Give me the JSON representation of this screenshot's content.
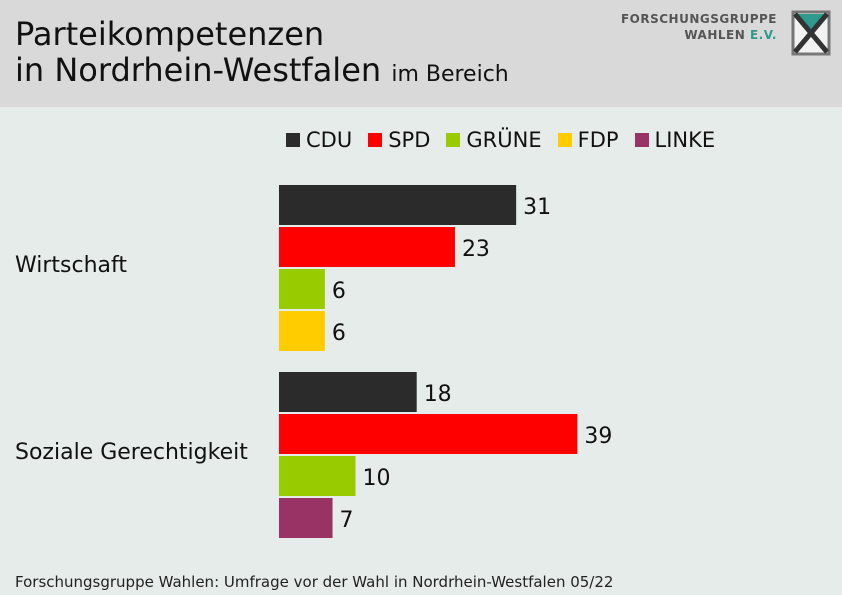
{
  "header": {
    "title_line1": "Parteikompetenzen",
    "title_line2": "in Nordrhein-Westfalen",
    "title_suffix": "im Bereich"
  },
  "logo": {
    "line1": "FORSCHUNGSGRUPPE",
    "line2": "WAHLEN",
    "line2_suffix": "E.V."
  },
  "footer": {
    "source": "Forschungsgruppe Wahlen: Umfrage vor der Wahl in Nordrhein-Westfalen 05/22"
  },
  "chart_data": {
    "type": "bar",
    "orientation": "horizontal",
    "grid": false,
    "legend_position": "top",
    "parties": [
      {
        "name": "CDU",
        "color": "#2b2b2b"
      },
      {
        "name": "SPD",
        "color": "#ff0000"
      },
      {
        "name": "GRÜNE",
        "color": "#99cc00"
      },
      {
        "name": "FDP",
        "color": "#ffcc00"
      },
      {
        "name": "LINKE",
        "color": "#993366"
      }
    ],
    "groups": [
      {
        "category": "Wirtschaft",
        "bars": [
          {
            "party": "CDU",
            "value": 31
          },
          {
            "party": "SPD",
            "value": 23
          },
          {
            "party": "GRÜNE",
            "value": 6
          },
          {
            "party": "FDP",
            "value": 6
          }
        ]
      },
      {
        "category": "Soziale Gerechtigkeit",
        "bars": [
          {
            "party": "CDU",
            "value": 18
          },
          {
            "party": "SPD",
            "value": 39
          },
          {
            "party": "GRÜNE",
            "value": 10
          },
          {
            "party": "LINKE",
            "value": 7
          }
        ]
      }
    ]
  }
}
